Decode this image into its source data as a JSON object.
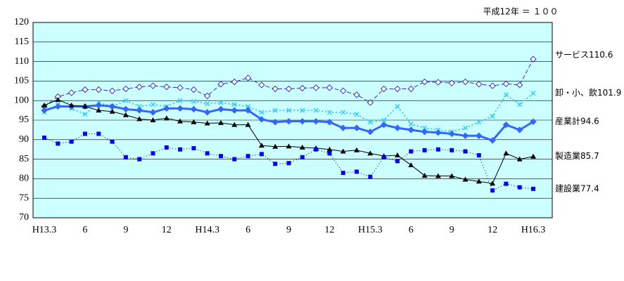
{
  "chart_data": {
    "type": "line",
    "note": "平成12年 ＝ １００",
    "categories": [
      "H13.3",
      null,
      null,
      "6",
      null,
      null,
      "9",
      null,
      null,
      "12",
      null,
      null,
      "H14.3",
      null,
      null,
      "6",
      null,
      null,
      "9",
      null,
      null,
      "12",
      null,
      null,
      "H15.3",
      null,
      null,
      "6",
      null,
      null,
      "9",
      null,
      null,
      "12",
      null,
      null,
      "H16.3"
    ],
    "ylim": [
      70,
      120
    ],
    "yticks": [
      70,
      75,
      80,
      85,
      90,
      95,
      100,
      105,
      110,
      115,
      120
    ],
    "grid": true,
    "background": "#ccffff",
    "series": [
      {
        "name": "サービス110.6",
        "color": "#3333cc",
        "dash": "6 3",
        "marker": "diamond-open",
        "width": 1,
        "values": [
          98.5,
          101,
          102,
          102.8,
          102.8,
          102.5,
          103,
          103.5,
          103.8,
          103.5,
          103.3,
          102.8,
          101.2,
          104.2,
          104.8,
          105.8,
          104,
          103,
          103,
          103.2,
          103.3,
          103.3,
          102.5,
          101.5,
          99.5,
          103,
          103,
          103,
          104.8,
          104.7,
          104.5,
          104.8,
          104.2,
          103.8,
          104.3,
          104,
          110.6
        ]
      },
      {
        "name": "卸・小、飲101.9",
        "color": "#33ccff",
        "dash": "2 3",
        "marker": "cross",
        "width": 2,
        "values": [
          97,
          99,
          98,
          96.5,
          99.5,
          98.5,
          100,
          98.5,
          99,
          98.5,
          100,
          99.8,
          99.2,
          99.5,
          99,
          98.5,
          97,
          97.5,
          97.5,
          97.5,
          97.5,
          97,
          97,
          96.5,
          94.5,
          95,
          98.5,
          94,
          93,
          92.5,
          92,
          93,
          94.5,
          96,
          101.5,
          99,
          101.9
        ]
      },
      {
        "name": "産業計94.6",
        "color": "#3366ff",
        "dash": "",
        "marker": "diamond",
        "width": 3,
        "values": [
          97.5,
          98.5,
          98.5,
          98.5,
          98.8,
          98.5,
          97.8,
          97.5,
          97,
          98,
          98,
          97.8,
          97,
          97.8,
          97.5,
          97.5,
          95.2,
          94.5,
          94.7,
          94.7,
          94.7,
          94.5,
          93,
          93,
          92,
          93.8,
          93,
          92.5,
          92,
          91.8,
          91.5,
          91,
          91,
          89.8,
          93.8,
          92.5,
          94.6
        ]
      },
      {
        "name": "製造業85.7",
        "color": "#000000",
        "dash": "",
        "marker": "triangle",
        "width": 1,
        "values": [
          98.8,
          100.2,
          98.8,
          98.5,
          97.5,
          97.2,
          96.3,
          95.3,
          95,
          95.5,
          94.7,
          94.5,
          94.2,
          94.3,
          93.8,
          93.8,
          88.5,
          88.2,
          88.3,
          88,
          87.8,
          87.5,
          87,
          87.3,
          86.5,
          85.8,
          86,
          83.5,
          80.8,
          80.7,
          80.7,
          79.8,
          79.3,
          78.8,
          86.5,
          85,
          85.7
        ]
      },
      {
        "name": "建設業77.4",
        "color": "#0000ff",
        "dash": "1 3",
        "marker": "square",
        "width": 1,
        "values": [
          90.5,
          89,
          89.5,
          91.5,
          91.5,
          89.5,
          85.5,
          85,
          86.5,
          88,
          87.5,
          87.8,
          86.5,
          85.8,
          85,
          85.8,
          86.3,
          83.8,
          84,
          85.5,
          87.5,
          86.5,
          81.5,
          81.8,
          80.5,
          85.5,
          84.5,
          87,
          87.3,
          87.5,
          87.3,
          87,
          86,
          77,
          78.7,
          77.8,
          77.4
        ]
      }
    ]
  }
}
